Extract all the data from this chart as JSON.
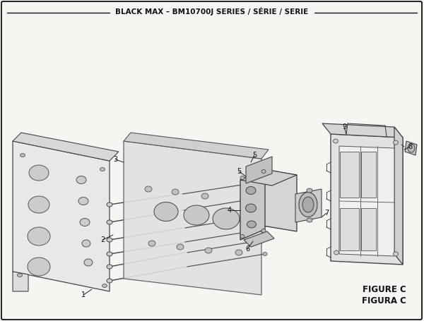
{
  "title": "BLACK MAX – BM10700J SERIES / SÉRIE / SERIE",
  "figure_label": "FIGURE C",
  "figura_label": "FIGURA C",
  "bg_color": "#f5f5f2",
  "border_color": "#222222",
  "line_color": "#333333",
  "text_color": "#111111",
  "title_fontsize": 7.5,
  "label_fontsize": 7,
  "fig_label_fontsize": 8.5,
  "figsize": [
    6.0,
    4.55
  ],
  "dpi": 100
}
